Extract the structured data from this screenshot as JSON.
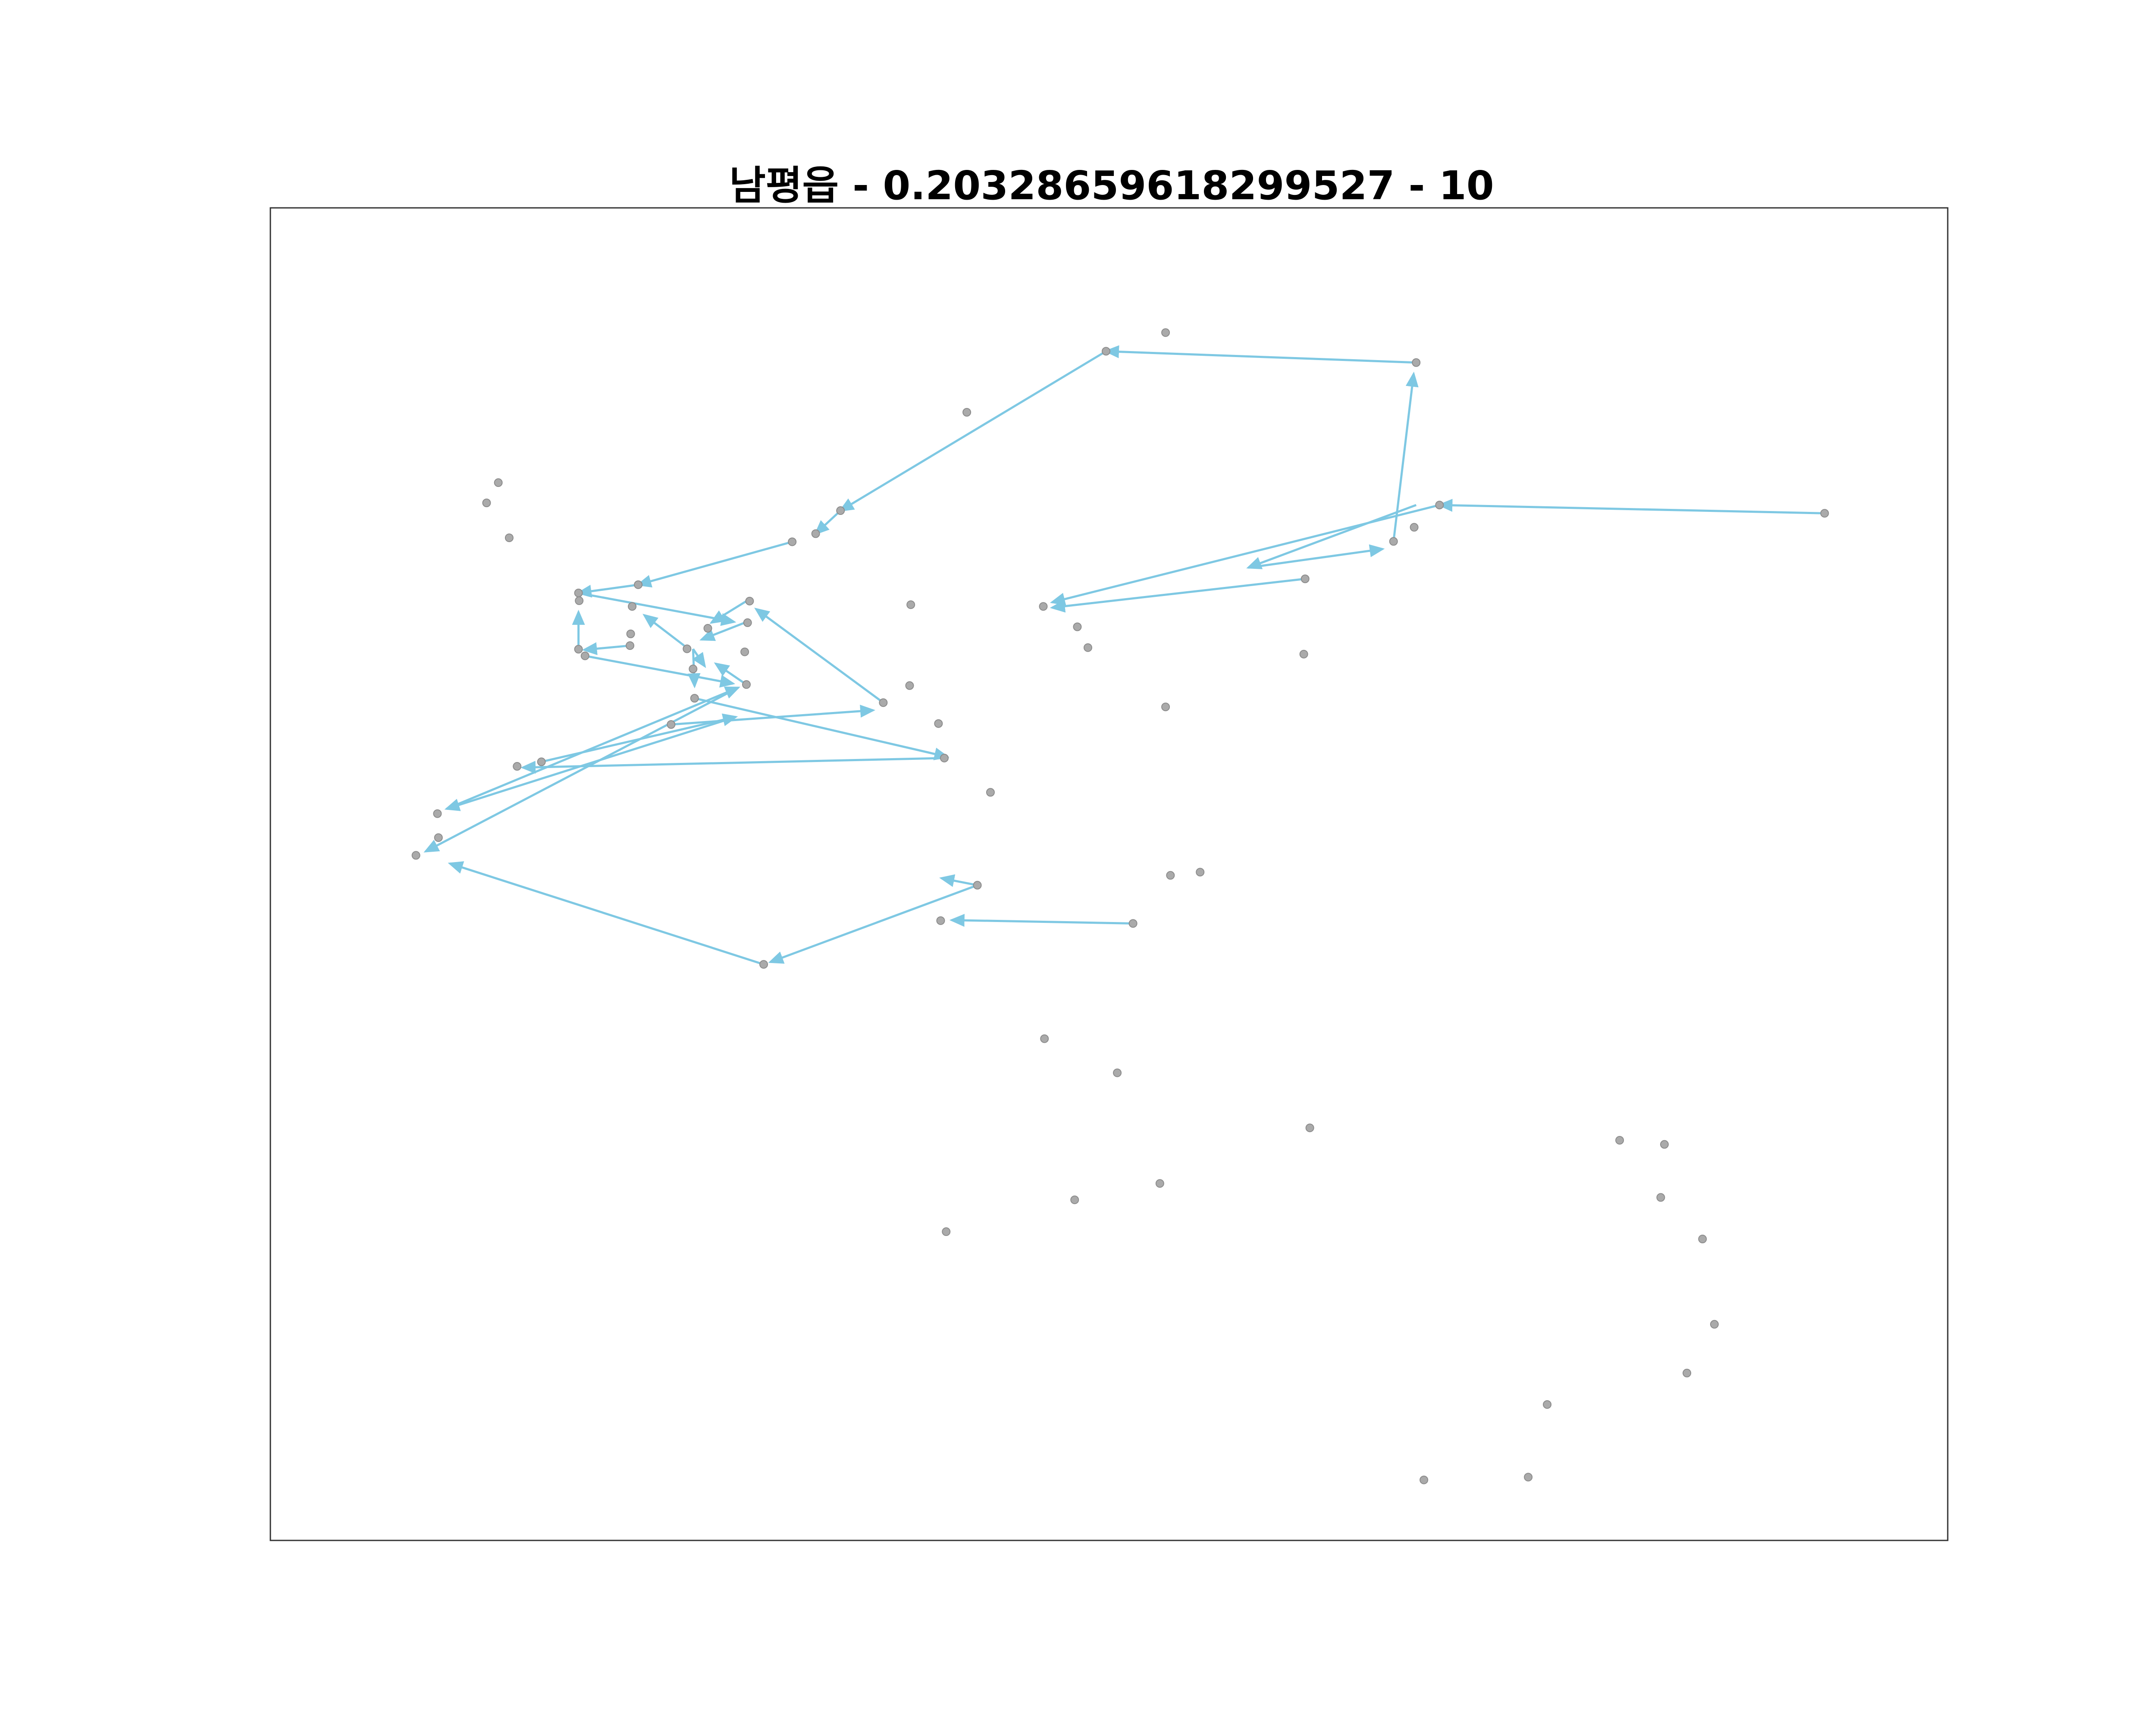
{
  "chart_data": {
    "type": "scatter",
    "title": "남평읍 - 0.20328659618299527 - 10",
    "xlabel": "",
    "ylabel": "",
    "axes_visible": false,
    "grid": false,
    "legend": "none",
    "colors": {
      "points": "#aaaaaa",
      "point_edge": "#8c8c8c",
      "arrows": "#7ec8e3",
      "frame": "#333333"
    },
    "xlim": [
      0,
      1
    ],
    "ylim": [
      0,
      1
    ],
    "points": [
      {
        "x": 0.4982,
        "y": 0.8924
      },
      {
        "x": 0.5337,
        "y": 0.9064
      },
      {
        "x": 0.6831,
        "y": 0.8839
      },
      {
        "x": 0.4152,
        "y": 0.8466
      },
      {
        "x": 0.697,
        "y": 0.777
      },
      {
        "x": 0.9266,
        "y": 0.7708
      },
      {
        "x": 0.3399,
        "y": 0.7728
      },
      {
        "x": 0.3251,
        "y": 0.7555
      },
      {
        "x": 0.3111,
        "y": 0.7494
      },
      {
        "x": 0.6819,
        "y": 0.7603
      },
      {
        "x": 0.6696,
        "y": 0.7497
      },
      {
        "x": 0.1359,
        "y": 0.7938
      },
      {
        "x": 0.1289,
        "y": 0.7786
      },
      {
        "x": 0.1424,
        "y": 0.7524
      },
      {
        "x": 0.6169,
        "y": 0.7216
      },
      {
        "x": 0.2193,
        "y": 0.7172
      },
      {
        "x": 0.1837,
        "y": 0.711
      },
      {
        "x": 0.2157,
        "y": 0.7009
      },
      {
        "x": 0.1841,
        "y": 0.7052
      },
      {
        "x": 0.2857,
        "y": 0.7049
      },
      {
        "x": 0.4608,
        "y": 0.7009
      },
      {
        "x": 0.3818,
        "y": 0.7022
      },
      {
        "x": 0.2148,
        "y": 0.6803
      },
      {
        "x": 0.2845,
        "y": 0.6887
      },
      {
        "x": 0.2608,
        "y": 0.6845
      },
      {
        "x": 0.4811,
        "y": 0.6856
      },
      {
        "x": 0.4874,
        "y": 0.67
      },
      {
        "x": 0.1837,
        "y": 0.6688
      },
      {
        "x": 0.2144,
        "y": 0.6715
      },
      {
        "x": 0.2484,
        "y": 0.6691
      },
      {
        "x": 0.1876,
        "y": 0.6638
      },
      {
        "x": 0.2828,
        "y": 0.6668
      },
      {
        "x": 0.6161,
        "y": 0.6651
      },
      {
        "x": 0.252,
        "y": 0.654
      },
      {
        "x": 0.2838,
        "y": 0.6423
      },
      {
        "x": 0.3811,
        "y": 0.6415
      },
      {
        "x": 0.2529,
        "y": 0.632
      },
      {
        "x": 0.5337,
        "y": 0.6255
      },
      {
        "x": 0.3654,
        "y": 0.6287
      },
      {
        "x": 0.2389,
        "y": 0.6123
      },
      {
        "x": 0.3983,
        "y": 0.613
      },
      {
        "x": 0.4018,
        "y": 0.5871
      },
      {
        "x": 0.1616,
        "y": 0.5843
      },
      {
        "x": 0.1471,
        "y": 0.5809
      },
      {
        "x": 0.4293,
        "y": 0.5614
      },
      {
        "x": 0.0996,
        "y": 0.5454
      },
      {
        "x": 0.1002,
        "y": 0.5274
      },
      {
        "x": 0.0868,
        "y": 0.5141
      },
      {
        "x": 0.5366,
        "y": 0.4991
      },
      {
        "x": 0.5543,
        "y": 0.5015
      },
      {
        "x": 0.4215,
        "y": 0.4917
      },
      {
        "x": 0.5143,
        "y": 0.463
      },
      {
        "x": 0.3996,
        "y": 0.4651
      },
      {
        "x": 0.2941,
        "y": 0.4323
      },
      {
        "x": 0.4615,
        "y": 0.3765
      },
      {
        "x": 0.5049,
        "y": 0.3509
      },
      {
        "x": 0.6197,
        "y": 0.3096
      },
      {
        "x": 0.8044,
        "y": 0.3003
      },
      {
        "x": 0.8311,
        "y": 0.2972
      },
      {
        "x": 0.5303,
        "y": 0.2679
      },
      {
        "x": 0.4795,
        "y": 0.2556
      },
      {
        "x": 0.8289,
        "y": 0.2574
      },
      {
        "x": 0.4029,
        "y": 0.2317
      },
      {
        "x": 0.8538,
        "y": 0.2262
      },
      {
        "x": 0.8609,
        "y": 0.1622
      },
      {
        "x": 0.8445,
        "y": 0.1256
      },
      {
        "x": 0.7612,
        "y": 0.102
      },
      {
        "x": 0.7499,
        "y": 0.0475
      },
      {
        "x": 0.6877,
        "y": 0.0454
      }
    ],
    "arrows": [
      {
        "from": [
          0.9266,
          "0.7708"
        ],
        "to": [
          0.697,
          0.777
        ]
      },
      {
        "from": [
          0.6831,
          0.8839
        ],
        "to": [
          0.4982,
          0.8924
        ]
      },
      {
        "from": [
          0.4982,
          0.8924
        ],
        "to": [
          0.3399,
          0.7728
        ]
      },
      {
        "from": [
          0.3399,
          0.7728
        ],
        "to": [
          0.3251,
          0.7555
        ]
      },
      {
        "from": [
          0.3111,
          0.7494
        ],
        "to": [
          0.2193,
          0.7172
        ]
      },
      {
        "from": [
          0.2193,
          0.7172
        ],
        "to": [
          0.1837,
          0.711
        ]
      },
      {
        "from": [
          0.1837,
          0.711
        ],
        "to": [
          0.2765,
          0.6893
        ]
      },
      {
        "from": [
          0.2838,
          0.7049
        ],
        "to": [
          0.2629,
          0.6887
        ]
      },
      {
        "from": [
          0.2828,
          0.6887
        ],
        "to": [
          0.257,
          0.676
        ]
      },
      {
        "from": [
          0.2467,
          0.6715
        ],
        "to": [
          0.2229,
          0.6944
        ]
      },
      {
        "from": [
          0.252,
          0.669
        ],
        "to": [
          0.2529,
          0.641
        ]
      },
      {
        "from": [
          0.252,
          0.669
        ],
        "to": [
          0.259,
          0.656
        ]
      },
      {
        "from": [
          0.2144,
          0.6715
        ],
        "to": [
          0.187,
          0.6683
        ]
      },
      {
        "from": [
          0.1837,
          0.6688
        ],
        "to": [
          0.1837,
          0.6968
        ]
      },
      {
        "from": [
          0.1876,
          0.6638
        ],
        "to": [
          0.2759,
          0.643
        ]
      },
      {
        "from": [
          0.2838,
          0.6423
        ],
        "to": [
          0.2655,
          0.658
        ]
      },
      {
        "from": [
          0.3654,
          0.6287
        ],
        "to": [
          0.2895,
          0.699
        ]
      },
      {
        "from": [
          0.2529,
          0.632
        ],
        "to": [
          0.4036,
          0.588
        ]
      },
      {
        "from": [
          0.2389,
          0.6123
        ],
        "to": [
          0.3594,
          0.623
        ]
      },
      {
        "from": [
          0.4018,
          0.5871
        ],
        "to": [
          0.1504,
          0.58
        ]
      },
      {
        "from": [
          0.1616,
          0.5843
        ],
        "to": [
          0.2775,
          0.618
        ]
      },
      {
        "from": [
          0.2775,
          0.618
        ],
        "to": [
          0.105,
          0.549
        ]
      },
      {
        "from": [
          0.105,
          0.549
        ],
        "to": [
          0.279,
          0.64
        ]
      },
      {
        "from": [
          0.279,
          0.64
        ],
        "to": [
          0.0925,
          0.517
        ]
      },
      {
        "from": [
          0.4215,
          0.4917
        ],
        "to": [
          0.4,
          0.497
        ]
      },
      {
        "from": [
          0.5143,
          0.463
        ],
        "to": [
          0.4061,
          0.4655
        ]
      },
      {
        "from": [
          0.4215,
          0.4917
        ],
        "to": [
          0.298,
          0.434
        ]
      },
      {
        "from": [
          0.2941,
          0.4323
        ],
        "to": [
          0.107,
          0.508
        ]
      },
      {
        "from": [
          0.6696,
          0.7497
        ],
        "to": [
          0.6816,
          0.8755
        ]
      },
      {
        "from": [
          0.6831,
          0.777
        ],
        "to": [
          0.583,
          0.73
        ]
      },
      {
        "from": [
          0.583,
          0.73
        ],
        "to": [
          0.6631,
          0.744
        ]
      },
      {
        "from": [
          0.697,
          0.777
        ],
        "to": [
          0.466,
          0.704
        ]
      },
      {
        "from": [
          0.6169,
          0.7216
        ],
        "to": [
          0.466,
          0.7
        ]
      }
    ]
  }
}
